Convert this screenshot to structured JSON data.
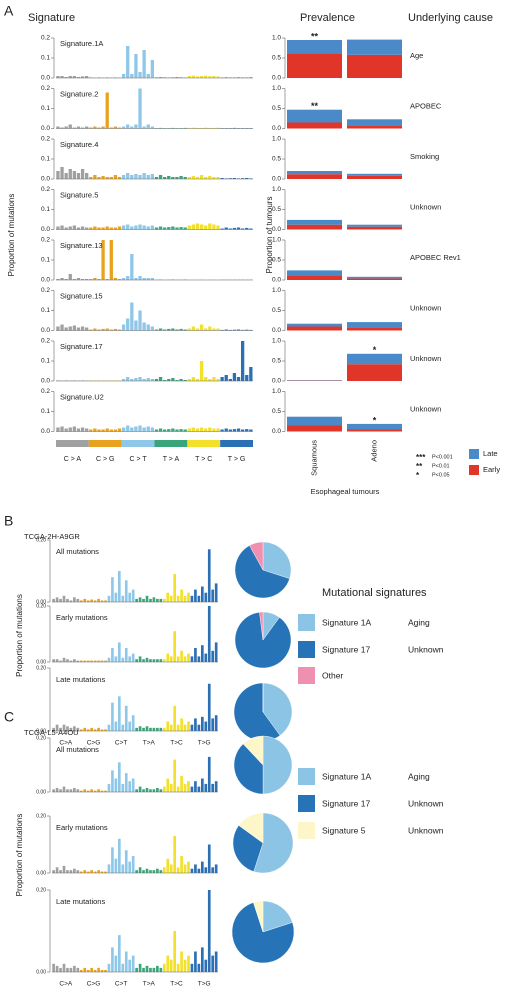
{
  "figure": {
    "panel_labels": [
      "A",
      "B",
      "C"
    ]
  },
  "class_colors": [
    "#a0a0a0",
    "#e8a21e",
    "#8ec7e8",
    "#3aa57a",
    "#f2e02a",
    "#2b6fb4"
  ],
  "chart_data": [
    {
      "type": "signature_panel",
      "headings": [
        "Signature",
        "Prevalence",
        "Underlying cause"
      ],
      "ylabel": "Proportion of mutations",
      "ylim": [
        0,
        0.2
      ],
      "yticks": [
        {
          "value": 0,
          "label": "0.0"
        },
        0.1,
        0.2
      ],
      "y2label": "Proportion of tumours",
      "y2lim": [
        0,
        1
      ],
      "y2ticks": [
        {
          "value": 0,
          "label": "0.0"
        },
        0.5,
        {
          "value": 1,
          "label": "1.0"
        }
      ],
      "class_labels": [
        "C > A",
        "C > G",
        "C > T",
        "T > A",
        "T > C",
        "T > G"
      ],
      "groups": [
        "Squamous",
        "Adeno"
      ],
      "xlabel": "Esophageal tumours",
      "series": [
        {
          "name": "Late",
          "color": "#4a8ac9"
        },
        {
          "name": "Early",
          "color": "#e2352a"
        }
      ],
      "significance": [
        {
          "symbol": "***",
          "label": "P<0.001"
        },
        {
          "symbol": "**",
          "label": "P<0.01"
        },
        {
          "symbol": "*",
          "label": "P<0.05"
        }
      ],
      "signatures": [
        {
          "name": "Signature.1A",
          "cause": "Age",
          "early": [
            0.6,
            0.58
          ],
          "late": [
            0.35,
            0.38
          ],
          "stars": [
            "**",
            null
          ],
          "values": [
            0.01,
            0.01,
            0.005,
            0.01,
            0.01,
            0.005,
            0.008,
            0.01,
            0.003,
            0.002,
            0.003,
            0.002,
            0.003,
            0.002,
            0.003,
            0.002,
            0.02,
            0.16,
            0.02,
            0.12,
            0.03,
            0.14,
            0.02,
            0.09,
            0.003,
            0.004,
            0.003,
            0.002,
            0.003,
            0.004,
            0.003,
            0.002,
            0.01,
            0.012,
            0.008,
            0.01,
            0.012,
            0.009,
            0.01,
            0.008,
            0.002,
            0.003,
            0.002,
            0.002,
            0.003,
            0.002,
            0.002,
            0.003
          ]
        },
        {
          "name": "Signature.2",
          "cause": "APOBEC",
          "early": [
            0.15,
            0.08
          ],
          "late": [
            0.32,
            0.15
          ],
          "stars": [
            "**",
            null
          ],
          "values": [
            0.01,
            0.005,
            0.01,
            0.02,
            0.005,
            0.01,
            0.005,
            0.01,
            0.005,
            0.01,
            0.005,
            0.01,
            0.18,
            0.005,
            0.01,
            0.005,
            0.01,
            0.02,
            0.01,
            0.02,
            0.2,
            0.01,
            0.02,
            0.01,
            0.002,
            0.003,
            0.002,
            0.002,
            0.003,
            0.002,
            0.002,
            0.003,
            0.003,
            0.004,
            0.003,
            0.003,
            0.004,
            0.003,
            0.003,
            0.004,
            0.002,
            0.002,
            0.002,
            0.003,
            0.002,
            0.002,
            0.002,
            0.002
          ]
        },
        {
          "name": "Signature.4",
          "cause": "Smoking",
          "early": [
            0.12,
            0.08
          ],
          "late": [
            0.08,
            0.05
          ],
          "stars": [
            null,
            null
          ],
          "values": [
            0.04,
            0.06,
            0.03,
            0.05,
            0.04,
            0.03,
            0.05,
            0.03,
            0.01,
            0.02,
            0.01,
            0.015,
            0.01,
            0.01,
            0.02,
            0.01,
            0.02,
            0.03,
            0.02,
            0.025,
            0.02,
            0.03,
            0.02,
            0.025,
            0.01,
            0.02,
            0.01,
            0.015,
            0.01,
            0.01,
            0.015,
            0.01,
            0.01,
            0.015,
            0.01,
            0.02,
            0.01,
            0.015,
            0.01,
            0.01,
            0.005,
            0.003,
            0.004,
            0.005,
            0.003,
            0.004,
            0.005,
            0.003
          ]
        },
        {
          "name": "Signature.5",
          "cause": "Unknown",
          "early": [
            0.12,
            0.07
          ],
          "late": [
            0.12,
            0.05
          ],
          "stars": [
            null,
            null
          ],
          "values": [
            0.015,
            0.02,
            0.01,
            0.015,
            0.02,
            0.01,
            0.015,
            0.01,
            0.01,
            0.015,
            0.01,
            0.01,
            0.015,
            0.01,
            0.01,
            0.015,
            0.02,
            0.025,
            0.015,
            0.02,
            0.025,
            0.02,
            0.015,
            0.02,
            0.01,
            0.015,
            0.01,
            0.012,
            0.015,
            0.01,
            0.012,
            0.01,
            0.02,
            0.025,
            0.03,
            0.025,
            0.02,
            0.03,
            0.025,
            0.02,
            0.005,
            0.01,
            0.005,
            0.008,
            0.01,
            0.005,
            0.008,
            0.005
          ]
        },
        {
          "name": "Signature.13",
          "cause": "APOBEC Rev1",
          "early": [
            0.1,
            0.04
          ],
          "late": [
            0.14,
            0.04
          ],
          "stars": [
            null,
            null
          ],
          "values": [
            0.005,
            0.01,
            0.005,
            0.03,
            0.005,
            0.01,
            0.005,
            0.005,
            0.005,
            0.01,
            0.005,
            0.2,
            0.005,
            0.2,
            0.01,
            0.005,
            0.01,
            0.02,
            0.13,
            0.01,
            0.02,
            0.01,
            0.01,
            0.01,
            0.001,
            0.002,
            0.001,
            0.001,
            0.002,
            0.001,
            0.001,
            0.002,
            0.002,
            0.001,
            0.002,
            0.002,
            0.001,
            0.002,
            0.002,
            0.001,
            0.001,
            0.001,
            0.001,
            0.001,
            0.001,
            0.001,
            0.001,
            0.001
          ]
        },
        {
          "name": "Signature.15",
          "cause": "Unknown",
          "early": [
            0.1,
            0.08
          ],
          "late": [
            0.07,
            0.13
          ],
          "stars": [
            null,
            null
          ],
          "values": [
            0.02,
            0.03,
            0.015,
            0.02,
            0.025,
            0.015,
            0.02,
            0.015,
            0.005,
            0.01,
            0.005,
            0.008,
            0.01,
            0.005,
            0.008,
            0.005,
            0.03,
            0.06,
            0.14,
            0.05,
            0.1,
            0.04,
            0.03,
            0.02,
            0.005,
            0.01,
            0.005,
            0.008,
            0.01,
            0.005,
            0.008,
            0.005,
            0.01,
            0.02,
            0.01,
            0.03,
            0.01,
            0.02,
            0.01,
            0.01,
            0.003,
            0.005,
            0.003,
            0.004,
            0.005,
            0.003,
            0.004,
            0.003
          ]
        },
        {
          "name": "Signature.17",
          "cause": "Unknown",
          "early": [
            0.01,
            0.42
          ],
          "late": [
            0.01,
            0.26
          ],
          "stars": [
            null,
            "*"
          ],
          "values": [
            0.003,
            0.002,
            0.003,
            0.002,
            0.003,
            0.002,
            0.003,
            0.002,
            0.002,
            0.002,
            0.002,
            0.002,
            0.002,
            0.002,
            0.002,
            0.002,
            0.01,
            0.02,
            0.01,
            0.015,
            0.02,
            0.01,
            0.015,
            0.01,
            0.01,
            0.02,
            0.005,
            0.01,
            0.015,
            0.005,
            0.01,
            0.005,
            0.01,
            0.02,
            0.01,
            0.1,
            0.02,
            0.01,
            0.02,
            0.01,
            0.02,
            0.03,
            0.01,
            0.04,
            0.02,
            0.2,
            0.03,
            0.07
          ]
        },
        {
          "name": "Signature.U2",
          "cause": "Unknown",
          "early": [
            0.15,
            0.05
          ],
          "late": [
            0.22,
            0.14
          ],
          "stars": [
            null,
            "*"
          ],
          "values": [
            0.02,
            0.025,
            0.015,
            0.02,
            0.025,
            0.015,
            0.02,
            0.015,
            0.01,
            0.015,
            0.01,
            0.01,
            0.015,
            0.01,
            0.01,
            0.015,
            0.02,
            0.03,
            0.02,
            0.025,
            0.03,
            0.02,
            0.025,
            0.02,
            0.01,
            0.015,
            0.01,
            0.012,
            0.015,
            0.01,
            0.012,
            0.01,
            0.015,
            0.02,
            0.015,
            0.02,
            0.015,
            0.02,
            0.015,
            0.015,
            0.01,
            0.015,
            0.01,
            0.012,
            0.015,
            0.01,
            0.012,
            0.01
          ]
        }
      ]
    },
    {
      "type": "sample_panel",
      "sample": "TCGA-2H-A9GR",
      "ylabel": "Proportion of mutations",
      "ylim": [
        0,
        0.2
      ],
      "yticks": [
        {
          "value": 0,
          "label": "0.00"
        },
        {
          "value": 0.2,
          "label": "0.20"
        }
      ],
      "class_labels": [
        "C>A",
        "C>G",
        "C>T",
        "T>A",
        "T>C",
        "T>G"
      ],
      "legend_title": "Mutational signatures",
      "signatures": [
        {
          "name": "Signature 1A",
          "cause": "Aging",
          "color": "#8cc4e6"
        },
        {
          "name": "Signature 17",
          "cause": "Unknown",
          "color": "#2773b8"
        },
        {
          "name": "Other",
          "color": "#f090b0"
        }
      ],
      "rows": [
        {
          "title": "All mutations",
          "pie": [
            30,
            62,
            8
          ],
          "values": [
            0.01,
            0.015,
            0.01,
            0.02,
            0.01,
            0.005,
            0.015,
            0.01,
            0.005,
            0.01,
            0.005,
            0.008,
            0.005,
            0.01,
            0.005,
            0.005,
            0.02,
            0.08,
            0.03,
            0.1,
            0.02,
            0.07,
            0.03,
            0.04,
            0.01,
            0.015,
            0.01,
            0.02,
            0.01,
            0.015,
            0.01,
            0.01,
            0.01,
            0.03,
            0.02,
            0.09,
            0.02,
            0.04,
            0.02,
            0.03,
            0.02,
            0.04,
            0.02,
            0.05,
            0.03,
            0.17,
            0.04,
            0.06
          ]
        },
        {
          "title": "Early mutations",
          "pie": [
            10,
            88,
            2
          ],
          "values": [
            0.01,
            0.01,
            0.005,
            0.015,
            0.01,
            0.005,
            0.01,
            0.005,
            0.005,
            0.005,
            0.005,
            0.005,
            0.005,
            0.005,
            0.005,
            0.005,
            0.015,
            0.05,
            0.02,
            0.07,
            0.015,
            0.05,
            0.02,
            0.03,
            0.01,
            0.02,
            0.01,
            0.015,
            0.01,
            0.01,
            0.01,
            0.01,
            0.01,
            0.03,
            0.02,
            0.11,
            0.02,
            0.04,
            0.02,
            0.03,
            0.02,
            0.05,
            0.02,
            0.06,
            0.03,
            0.2,
            0.04,
            0.07
          ]
        },
        {
          "title": "Late mutations",
          "pie": [
            40,
            60,
            0
          ],
          "values": [
            0.01,
            0.02,
            0.01,
            0.02,
            0.015,
            0.01,
            0.015,
            0.01,
            0.005,
            0.01,
            0.005,
            0.01,
            0.005,
            0.01,
            0.005,
            0.005,
            0.02,
            0.09,
            0.03,
            0.11,
            0.02,
            0.08,
            0.03,
            0.05,
            0.01,
            0.015,
            0.01,
            0.015,
            0.01,
            0.01,
            0.01,
            0.01,
            0.01,
            0.03,
            0.02,
            0.08,
            0.02,
            0.04,
            0.02,
            0.03,
            0.02,
            0.04,
            0.02,
            0.045,
            0.03,
            0.15,
            0.04,
            0.05
          ]
        }
      ]
    },
    {
      "type": "sample_panel",
      "sample": "TCGA-L5-A4OU",
      "ylabel": "Proportion of mutations",
      "ylim": [
        0,
        0.2
      ],
      "yticks": [
        {
          "value": 0,
          "label": "0.00"
        },
        {
          "value": 0.2,
          "label": "0.20"
        }
      ],
      "class_labels": [
        "C>A",
        "C>G",
        "C>T",
        "T>A",
        "T>C",
        "T>G"
      ],
      "signatures": [
        {
          "name": "Signature 1A",
          "cause": "Aging",
          "color": "#8cc4e6"
        },
        {
          "name": "Signature 17",
          "cause": "Unknown",
          "color": "#2773b8"
        },
        {
          "name": "Signature 5",
          "cause": "Unknown",
          "color": "#fdf6c8"
        }
      ],
      "rows": [
        {
          "title": "All mutations",
          "pie": [
            50,
            38,
            12
          ],
          "values": [
            0.01,
            0.015,
            0.01,
            0.02,
            0.01,
            0.01,
            0.015,
            0.01,
            0.005,
            0.01,
            0.005,
            0.01,
            0.005,
            0.01,
            0.005,
            0.005,
            0.03,
            0.08,
            0.05,
            0.11,
            0.03,
            0.07,
            0.04,
            0.05,
            0.01,
            0.02,
            0.01,
            0.015,
            0.01,
            0.01,
            0.015,
            0.01,
            0.02,
            0.05,
            0.03,
            0.12,
            0.02,
            0.06,
            0.03,
            0.04,
            0.02,
            0.04,
            0.02,
            0.05,
            0.03,
            0.13,
            0.03,
            0.04
          ]
        },
        {
          "title": "Early mutations",
          "pie": [
            55,
            30,
            15
          ],
          "values": [
            0.01,
            0.02,
            0.01,
            0.025,
            0.01,
            0.01,
            0.015,
            0.01,
            0.005,
            0.01,
            0.005,
            0.01,
            0.005,
            0.01,
            0.005,
            0.005,
            0.03,
            0.09,
            0.05,
            0.12,
            0.03,
            0.08,
            0.04,
            0.06,
            0.01,
            0.02,
            0.01,
            0.015,
            0.01,
            0.01,
            0.015,
            0.01,
            0.02,
            0.05,
            0.03,
            0.13,
            0.02,
            0.06,
            0.03,
            0.04,
            0.015,
            0.03,
            0.015,
            0.04,
            0.02,
            0.1,
            0.02,
            0.03
          ]
        },
        {
          "title": "Late mutations",
          "pie": [
            20,
            75,
            5
          ],
          "values": [
            0.02,
            0.015,
            0.01,
            0.02,
            0.01,
            0.01,
            0.015,
            0.01,
            0.005,
            0.01,
            0.005,
            0.01,
            0.005,
            0.01,
            0.005,
            0.005,
            0.02,
            0.06,
            0.04,
            0.09,
            0.02,
            0.05,
            0.03,
            0.04,
            0.01,
            0.02,
            0.01,
            0.015,
            0.01,
            0.01,
            0.015,
            0.01,
            0.02,
            0.04,
            0.03,
            0.1,
            0.02,
            0.05,
            0.03,
            0.04,
            0.02,
            0.05,
            0.02,
            0.06,
            0.03,
            0.2,
            0.04,
            0.05
          ]
        }
      ]
    }
  ]
}
